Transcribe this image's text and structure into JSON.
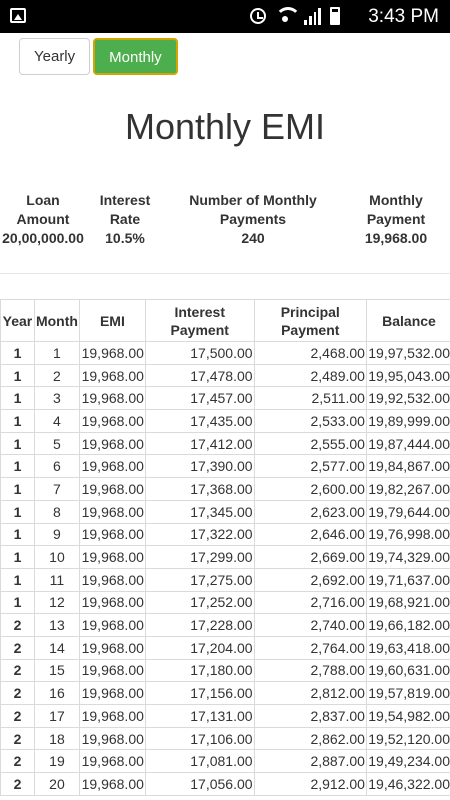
{
  "status_bar": {
    "time": "3:43 PM",
    "icons": [
      "gallery-icon",
      "alarm-icon",
      "wifi-icon",
      "signal-icon",
      "battery-icon"
    ]
  },
  "toggle": {
    "yearly_label": "Yearly",
    "monthly_label": "Monthly",
    "selected": "Monthly"
  },
  "page_title": "Monthly EMI",
  "summary": [
    {
      "label": "Loan Amount",
      "value": "20,00,000.00"
    },
    {
      "label": "Interest Rate",
      "value": "10.5%"
    },
    {
      "label": "Number of Monthly Payments",
      "value": "240"
    },
    {
      "label": "Monthly Payment",
      "value": "19,968.00"
    }
  ],
  "table": {
    "headers": [
      "Year",
      "Month",
      "EMI",
      "Interest Payment",
      "Principal Payment",
      "Balance"
    ],
    "rows": [
      [
        "1",
        "1",
        "19,968.00",
        "17,500.00",
        "2,468.00",
        "19,97,532.00"
      ],
      [
        "1",
        "2",
        "19,968.00",
        "17,478.00",
        "2,489.00",
        "19,95,043.00"
      ],
      [
        "1",
        "3",
        "19,968.00",
        "17,457.00",
        "2,511.00",
        "19,92,532.00"
      ],
      [
        "1",
        "4",
        "19,968.00",
        "17,435.00",
        "2,533.00",
        "19,89,999.00"
      ],
      [
        "1",
        "5",
        "19,968.00",
        "17,412.00",
        "2,555.00",
        "19,87,444.00"
      ],
      [
        "1",
        "6",
        "19,968.00",
        "17,390.00",
        "2,577.00",
        "19,84,867.00"
      ],
      [
        "1",
        "7",
        "19,968.00",
        "17,368.00",
        "2,600.00",
        "19,82,267.00"
      ],
      [
        "1",
        "8",
        "19,968.00",
        "17,345.00",
        "2,623.00",
        "19,79,644.00"
      ],
      [
        "1",
        "9",
        "19,968.00",
        "17,322.00",
        "2,646.00",
        "19,76,998.00"
      ],
      [
        "1",
        "10",
        "19,968.00",
        "17,299.00",
        "2,669.00",
        "19,74,329.00"
      ],
      [
        "1",
        "11",
        "19,968.00",
        "17,275.00",
        "2,692.00",
        "19,71,637.00"
      ],
      [
        "1",
        "12",
        "19,968.00",
        "17,252.00",
        "2,716.00",
        "19,68,921.00"
      ],
      [
        "2",
        "13",
        "19,968.00",
        "17,228.00",
        "2,740.00",
        "19,66,182.00"
      ],
      [
        "2",
        "14",
        "19,968.00",
        "17,204.00",
        "2,764.00",
        "19,63,418.00"
      ],
      [
        "2",
        "15",
        "19,968.00",
        "17,180.00",
        "2,788.00",
        "19,60,631.00"
      ],
      [
        "2",
        "16",
        "19,968.00",
        "17,156.00",
        "2,812.00",
        "19,57,819.00"
      ],
      [
        "2",
        "17",
        "19,968.00",
        "17,131.00",
        "2,837.00",
        "19,54,982.00"
      ],
      [
        "2",
        "18",
        "19,968.00",
        "17,106.00",
        "2,862.00",
        "19,52,120.00"
      ],
      [
        "2",
        "19",
        "19,968.00",
        "17,081.00",
        "2,887.00",
        "19,49,234.00"
      ],
      [
        "2",
        "20",
        "19,968.00",
        "17,056.00",
        "2,912.00",
        "19,46,322.00"
      ]
    ]
  }
}
